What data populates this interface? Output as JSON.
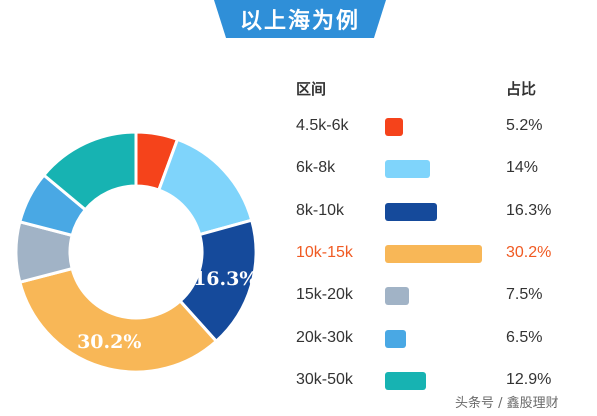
{
  "header": {
    "title": "以上海为例"
  },
  "table": {
    "col_range": "区间",
    "col_share": "占比"
  },
  "chart_data": {
    "type": "pie",
    "donut": true,
    "title": "以上海为例",
    "categories": [
      "4.5k-6k",
      "6k-8k",
      "8k-10k",
      "10k-15k",
      "15k-20k",
      "20k-30k",
      "30k-50k"
    ],
    "values": [
      5.2,
      14,
      16.3,
      30.2,
      7.5,
      6.5,
      12.9
    ],
    "value_labels": [
      "5.2%",
      "14%",
      "16.3%",
      "30.2%",
      "7.5%",
      "6.5%",
      "12.9%"
    ],
    "slice_labels_shown": [
      "",
      "",
      "16.3%",
      "30.2%",
      "",
      "",
      ""
    ],
    "colors": [
      "#f5431b",
      "#7fd4fb",
      "#154a9b",
      "#f8b757",
      "#a1b3c6",
      "#49a8e4",
      "#17b3b2"
    ],
    "highlight_index": 3,
    "highlight_color": "#f05a22"
  },
  "watermark": "头条号 / 鑫股理财"
}
